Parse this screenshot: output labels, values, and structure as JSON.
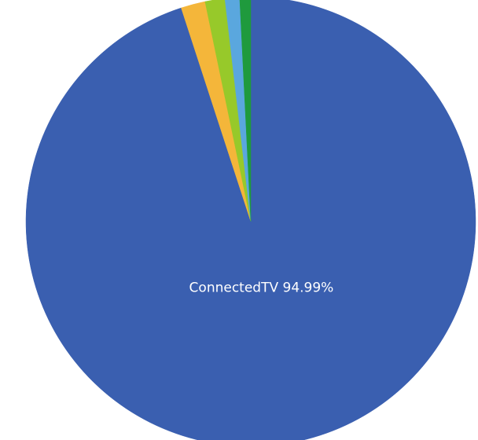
{
  "chart_data": {
    "type": "pie",
    "start_angle_deg": 0,
    "direction": "clockwise",
    "slices": [
      {
        "label": "ConnectedTV",
        "value": 94.99,
        "display_label": "ConnectedTV 94.99%",
        "color": "#3a5fb0",
        "show_label": true
      },
      {
        "label": "",
        "value": 1.75,
        "display_label": "",
        "color": "#f4b63a",
        "show_label": false
      },
      {
        "label": "",
        "value": 1.42,
        "display_label": "",
        "color": "#97c92a",
        "show_label": false
      },
      {
        "label": "",
        "value": 1.05,
        "display_label": "",
        "color": "#5aa7de",
        "show_label": false
      },
      {
        "label": "",
        "value": 0.79,
        "display_label": "",
        "color": "#1f9a3d",
        "show_label": false
      }
    ]
  }
}
